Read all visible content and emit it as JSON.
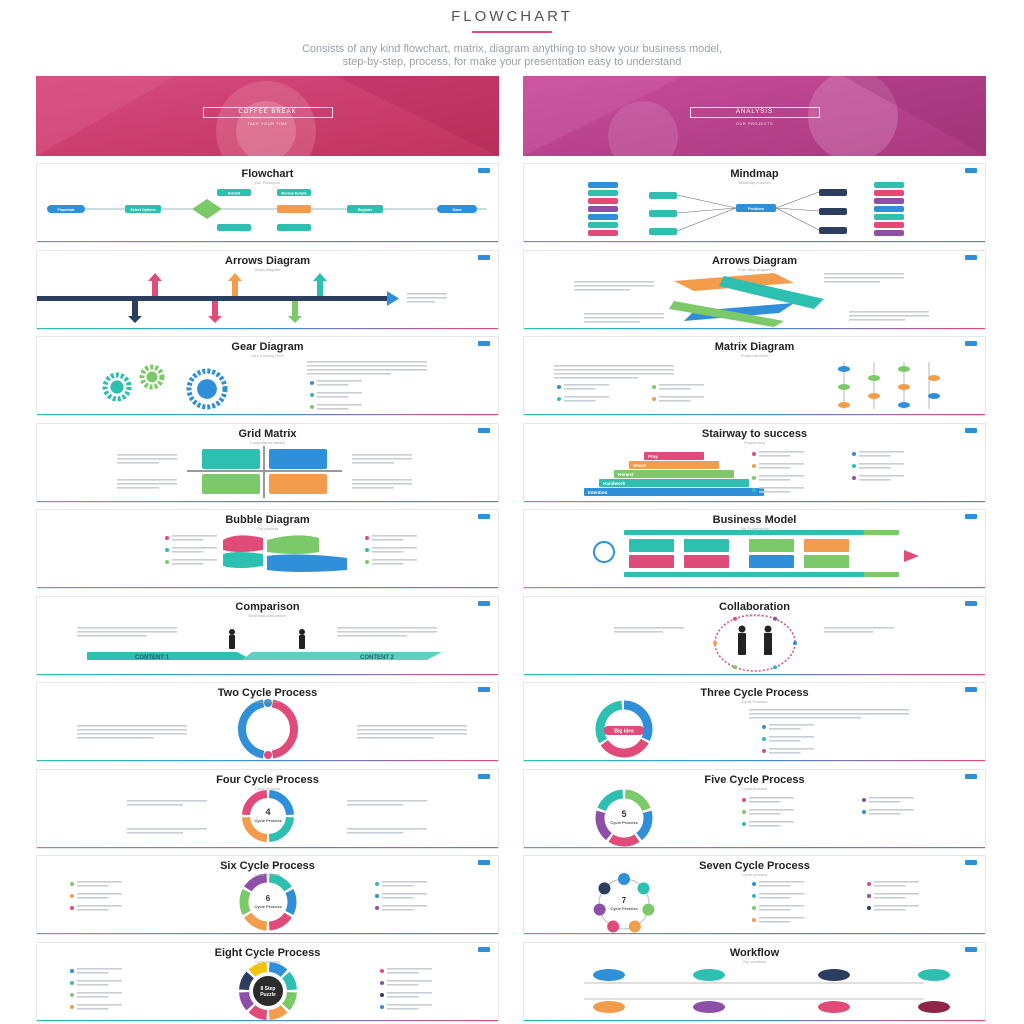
{
  "header": {
    "title": "FLOWCHART",
    "subtitle_line1": "Consists of any kind flowchart, matrix, diagram anything to show your business model,",
    "subtitle_line2": "step-by-step, process, for make your presentation easy to understand"
  },
  "colors": {
    "teal": "#2dbfb0",
    "blue": "#2f8fd8",
    "pink": "#e04b7a",
    "orange": "#f39c4b",
    "green": "#7cc96a",
    "purple": "#8e4fa8",
    "navy": "#2c3e60"
  },
  "heroes": [
    {
      "banner": "COFFEE BREAK",
      "tagline": "TAKE YOUR TIME"
    },
    {
      "banner": "ANALYSIS",
      "tagline": "OUR PROJECTS"
    }
  ],
  "left_slides": [
    {
      "title": "Flowchart",
      "subtitle": "Our Flowchart"
    },
    {
      "title": "Arrows Diagram",
      "subtitle": "Steps diagram"
    },
    {
      "title": "Gear Diagram",
      "subtitle": "Your Gearing Here"
    },
    {
      "title": "Grid Matrix",
      "subtitle": "Components details"
    },
    {
      "title": "Bubble Diagram",
      "subtitle": "Our process"
    },
    {
      "title": "Comparison",
      "subtitle": "Business comparison"
    },
    {
      "title": "Two Cycle Process",
      "subtitle": "Cycle Process"
    },
    {
      "title": "Four Cycle Process",
      "subtitle": "Cycle process"
    },
    {
      "title": "Six Cycle Process",
      "subtitle": "Cycle process"
    },
    {
      "title": "Eight Cycle Process",
      "subtitle": "Cycle process"
    }
  ],
  "right_slides": [
    {
      "title": "Mindmap",
      "subtitle": "Mindmap process"
    },
    {
      "title": "Arrows Diagram",
      "subtitle": "Four step diagram"
    },
    {
      "title": "Matrix Diagram",
      "subtitle": "Project timeline"
    },
    {
      "title": "Stairway to success",
      "subtitle": "Project step"
    },
    {
      "title": "Business Model",
      "subtitle": "Our Progression"
    },
    {
      "title": "Collaboration",
      "subtitle": "Team work"
    },
    {
      "title": "Three Cycle Process",
      "subtitle": "Cycle Process"
    },
    {
      "title": "Five Cycle Process",
      "subtitle": "Cycle process"
    },
    {
      "title": "Seven Cycle Process",
      "subtitle": "Cycle process"
    },
    {
      "title": "Workflow",
      "subtitle": "Our workflow"
    }
  ],
  "labels": {
    "flowchart_nodes": [
      "Flowchart",
      "Select Options",
      "Submit",
      "Review Details",
      "Register",
      "Done"
    ],
    "stairs": [
      "Pray",
      "Smart",
      "Honest",
      "Handwork",
      "Intention"
    ],
    "comparison": [
      "CONTENT 1",
      "CONTENT 2"
    ],
    "big_idea": "Big Idea",
    "four_cycle": [
      "4",
      "Cycle Process"
    ],
    "five_cycle": [
      "5",
      "Cycle Process"
    ],
    "six_cycle": [
      "6",
      "Cycle Process"
    ],
    "seven_cycle": [
      "7",
      "Cycle Process"
    ],
    "eight_cycle": [
      "8 Step",
      "Puzzle"
    ],
    "problem": "Problem"
  }
}
